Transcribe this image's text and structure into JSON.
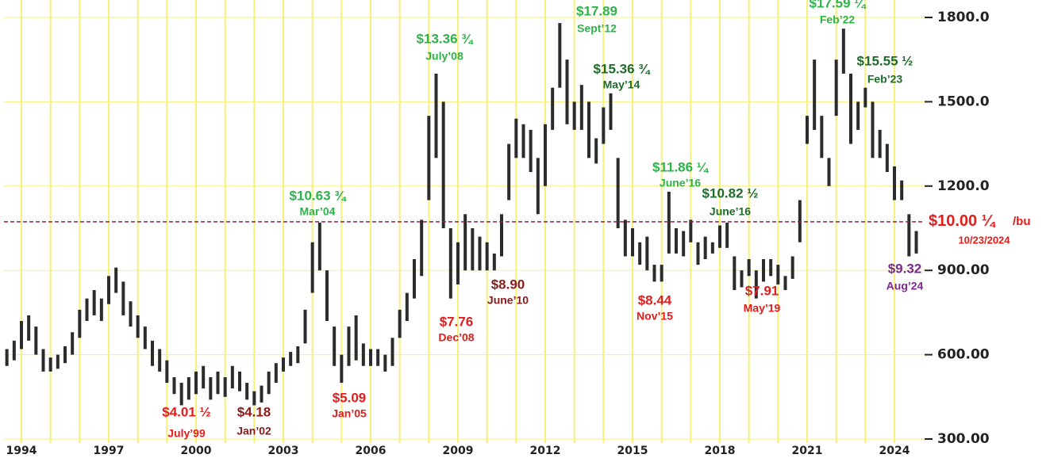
{
  "chart_data": {
    "type": "range_bar",
    "bar_color": "#2b2b2b",
    "grid_color": "#f7f07a",
    "grid": true,
    "x": [
      1993.5,
      1993.75,
      1994,
      1994.25,
      1994.5,
      1994.75,
      1995,
      1995.25,
      1995.5,
      1995.75,
      1996,
      1996.25,
      1996.5,
      1996.75,
      1997,
      1997.25,
      1997.5,
      1997.75,
      1998,
      1998.25,
      1998.5,
      1998.75,
      1999,
      1999.25,
      1999.5,
      1999.75,
      2000,
      2000.25,
      2000.5,
      2000.75,
      2001,
      2001.25,
      2001.5,
      2001.75,
      2002,
      2002.25,
      2002.5,
      2002.75,
      2003,
      2003.25,
      2003.5,
      2003.75,
      2004,
      2004.25,
      2004.5,
      2004.75,
      2005,
      2005.25,
      2005.5,
      2005.75,
      2006,
      2006.25,
      2006.5,
      2006.75,
      2007,
      2007.25,
      2007.5,
      2007.75,
      2008,
      2008.25,
      2008.5,
      2008.75,
      2009,
      2009.25,
      2009.5,
      2009.75,
      2010,
      2010.25,
      2010.5,
      2010.75,
      2011,
      2011.25,
      2011.5,
      2011.75,
      2012,
      2012.25,
      2012.5,
      2012.75,
      2013,
      2013.25,
      2013.5,
      2013.75,
      2014,
      2014.25,
      2014.5,
      2014.75,
      2015,
      2015.25,
      2015.5,
      2015.75,
      2016,
      2016.25,
      2016.5,
      2016.75,
      2017,
      2017.25,
      2017.5,
      2017.75,
      2018,
      2018.25,
      2018.5,
      2018.75,
      2019,
      2019.25,
      2019.5,
      2019.75,
      2020,
      2020.25,
      2020.5,
      2020.75,
      2021,
      2021.25,
      2021.5,
      2021.75,
      2022,
      2022.25,
      2022.5,
      2022.75,
      2023,
      2023.25,
      2023.5,
      2023.75,
      2024,
      2024.25,
      2024.5,
      2024.75
    ],
    "low": [
      560,
      580,
      620,
      650,
      600,
      540,
      540,
      550,
      570,
      600,
      660,
      720,
      740,
      720,
      780,
      820,
      740,
      700,
      660,
      620,
      560,
      540,
      500,
      460,
      420,
      440,
      460,
      480,
      440,
      460,
      450,
      480,
      470,
      440,
      420,
      430,
      460,
      500,
      540,
      560,
      570,
      640,
      820,
      900,
      720,
      560,
      500,
      560,
      580,
      560,
      560,
      560,
      540,
      560,
      660,
      720,
      800,
      880,
      1150,
      1300,
      1050,
      800,
      850,
      900,
      900,
      900,
      900,
      900,
      950,
      1150,
      1300,
      1300,
      1250,
      1100,
      1200,
      1400,
      1550,
      1420,
      1400,
      1400,
      1300,
      1280,
      1350,
      1400,
      1050,
      950,
      950,
      920,
      900,
      860,
      860,
      960,
      960,
      950,
      1000,
      920,
      940,
      960,
      980,
      980,
      830,
      840,
      880,
      800,
      860,
      880,
      850,
      830,
      870,
      1000,
      1350,
      1400,
      1300,
      1200,
      1450,
      1600,
      1350,
      1400,
      1480,
      1300,
      1300,
      1250,
      1150,
      1150,
      950,
      960
    ],
    "high": [
      620,
      650,
      720,
      740,
      700,
      620,
      590,
      600,
      630,
      680,
      760,
      800,
      830,
      800,
      880,
      910,
      860,
      790,
      740,
      700,
      650,
      620,
      580,
      520,
      500,
      520,
      540,
      560,
      520,
      540,
      520,
      560,
      540,
      500,
      470,
      490,
      540,
      570,
      590,
      610,
      630,
      760,
      1000,
      1070,
      900,
      700,
      600,
      700,
      740,
      640,
      620,
      620,
      600,
      660,
      760,
      820,
      940,
      1080,
      1450,
      1600,
      1500,
      1050,
      1000,
      1100,
      1050,
      1020,
      1000,
      960,
      1100,
      1350,
      1440,
      1420,
      1400,
      1300,
      1420,
      1550,
      1780,
      1650,
      1500,
      1560,
      1500,
      1370,
      1480,
      1530,
      1300,
      1080,
      1050,
      1000,
      1020,
      920,
      920,
      1180,
      1050,
      1040,
      1080,
      1000,
      1020,
      1000,
      1060,
      1070,
      950,
      900,
      940,
      900,
      940,
      940,
      920,
      880,
      950,
      1150,
      1450,
      1650,
      1450,
      1300,
      1650,
      1760,
      1600,
      1500,
      1550,
      1500,
      1400,
      1350,
      1270,
      1220,
      1100,
      1040
    ],
    "xlim": [
      1993.4,
      2024.9
    ],
    "xticks": [
      1994,
      1997,
      2000,
      2003,
      2006,
      2009,
      2012,
      2015,
      2018,
      2021,
      2024
    ],
    "xgrid": [
      1994,
      1995,
      1996,
      1997,
      1998,
      1999,
      2000,
      2001,
      2002,
      2003,
      2004,
      2005,
      2006,
      2007,
      2008,
      2009,
      2010,
      2011,
      2012,
      2013,
      2014,
      2015,
      2016,
      2017,
      2018,
      2019,
      2020,
      2021,
      2022,
      2023,
      2024
    ],
    "ylim": [
      300,
      1800
    ],
    "yticks": [
      {
        "value": 1800,
        "label": "1800.0"
      },
      {
        "value": 1500,
        "label": "1500.0"
      },
      {
        "value": 1200,
        "label": "1200.0"
      },
      {
        "value": 900,
        "label": "900.00"
      },
      {
        "value": 600,
        "label": "600.00"
      },
      {
        "value": 300,
        "label": "300.00"
      }
    ],
    "reference_line": {
      "value": 1073,
      "color": "#a0185a",
      "price": "$10.00 ¼",
      "unit": "/bu",
      "date": "10/23/2024",
      "label_color": "#e31c1c"
    },
    "annotations": [
      {
        "price": "$4.01 ½",
        "date": "July’99",
        "color": "#e31c1c"
      },
      {
        "price": "$4.18",
        "date": "Jan’02",
        "color": "#8b1a1a"
      },
      {
        "price": "$5.09",
        "date": "Jan’05",
        "color": "#e31c1c"
      },
      {
        "price": "$10.63 ¾",
        "date": "Mar’04",
        "color": "#2db34a"
      },
      {
        "price": "$13.36 ¾",
        "date": "July’08",
        "color": "#2db34a"
      },
      {
        "price": "$7.76",
        "date": "Dec’08",
        "color": "#e31c1c"
      },
      {
        "price": "$8.90",
        "date": "June’10",
        "color": "#8b1a1a"
      },
      {
        "price": "$17.89",
        "date": "Sept’12",
        "color": "#2db34a"
      },
      {
        "price": "$15.36 ¾",
        "date": "May’14",
        "color": "#1e6b2a"
      },
      {
        "price": "$8.44",
        "date": "Nov’15",
        "color": "#e31c1c"
      },
      {
        "price": "$11.86 ¼",
        "date": "June’16",
        "color": "#2db34a"
      },
      {
        "price": "$10.82 ½",
        "date": "June’16",
        "color": "#1e6b2a"
      },
      {
        "price": "$7.91",
        "date": "May’19",
        "color": "#e31c1c"
      },
      {
        "price": "$17.59 ¼",
        "date": "Feb’22",
        "color": "#2db34a"
      },
      {
        "price": "$15.55 ½",
        "date": "Feb’23",
        "color": "#1e6b2a"
      },
      {
        "price": "$9.32",
        "date": "Aug’24",
        "color": "#7b2a8c"
      }
    ]
  }
}
